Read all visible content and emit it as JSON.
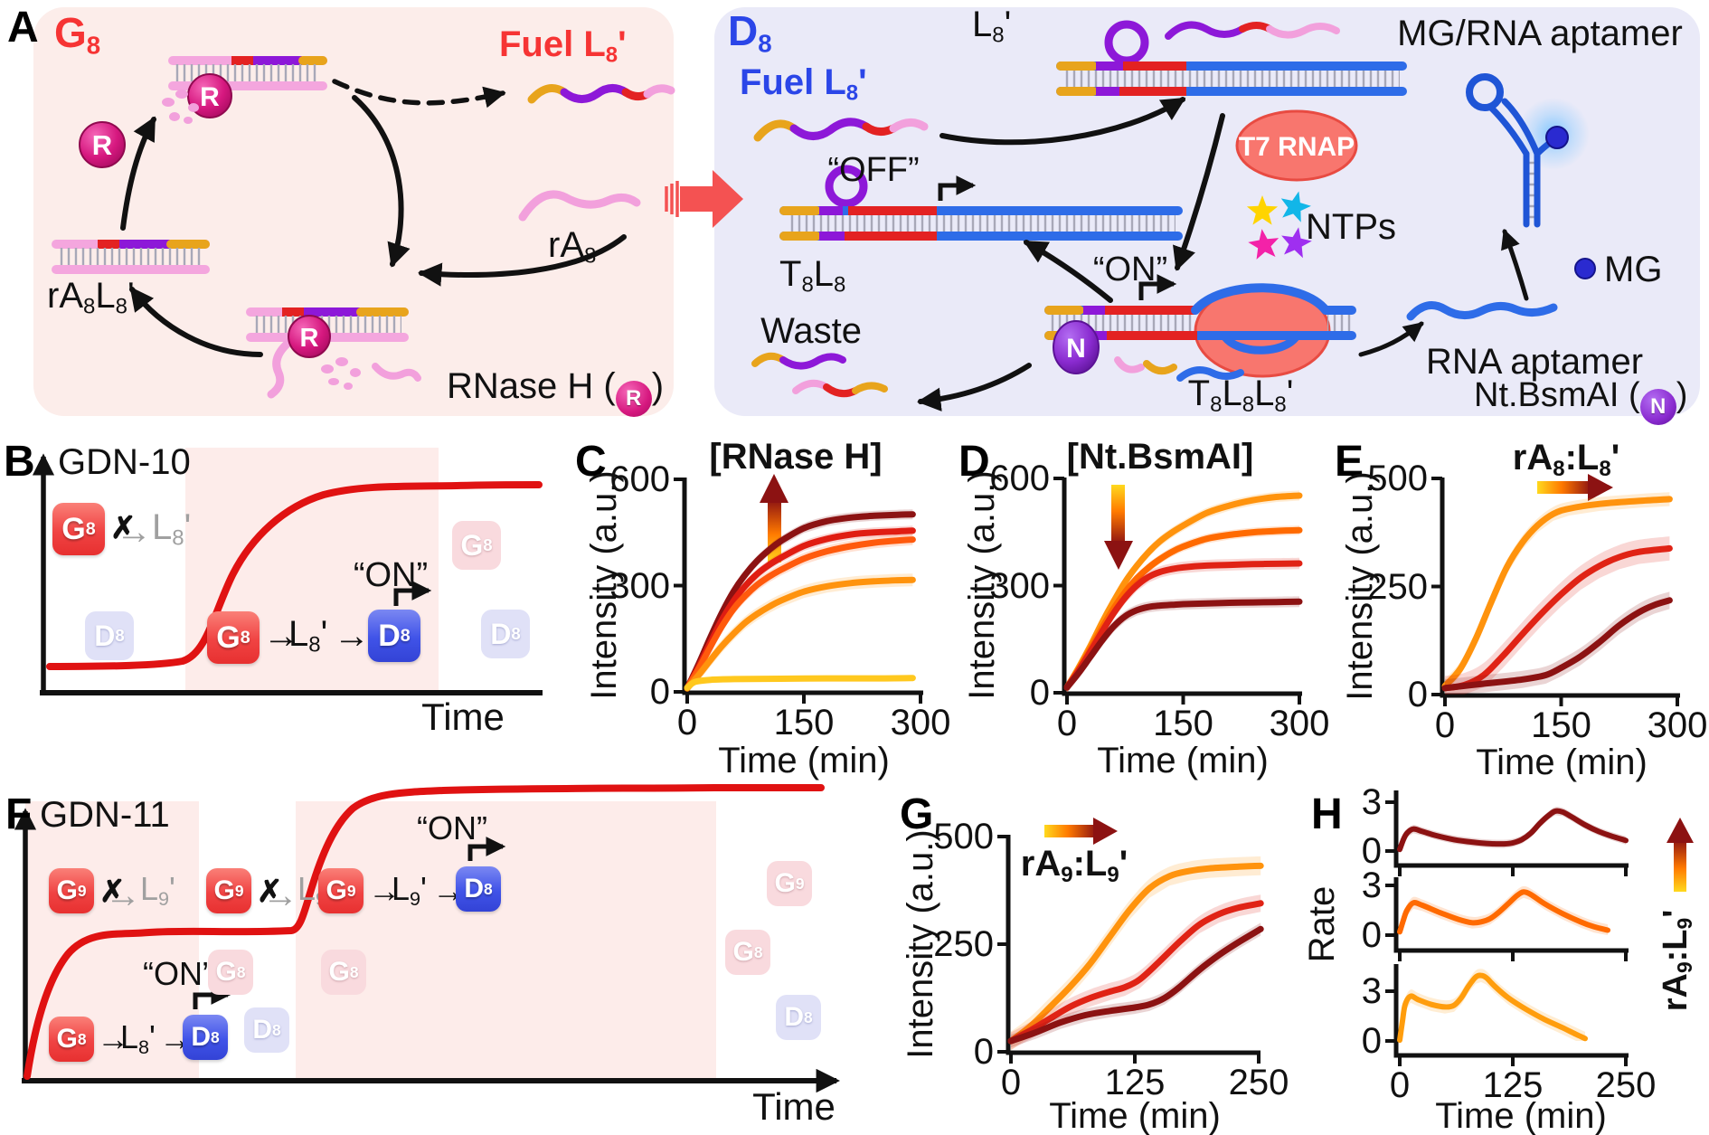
{
  "panel_letters": {
    "a": "A",
    "b": "B",
    "c": "C",
    "d": "D",
    "e": "E",
    "f": "F",
    "g": "G",
    "h": "H"
  },
  "glyphs": {
    "arrow": "→",
    "cross": "✗"
  },
  "panel_a": {
    "left": {
      "title_main": "G",
      "title_sub": "8",
      "fuel_pre": "Fuel ",
      "fuel_main": "L",
      "fuel_sub": "8",
      "fuel_prime": "'",
      "ra8_main": "rA",
      "ra8_sub": "8",
      "ra8l8_m1": "rA",
      "ra8l8_s1": "8",
      "ra8l8_m2": "L",
      "ra8l8_s2": "8",
      "ra8l8_prime": "'",
      "rnase_pre": "RNase H (",
      "rnase_post": ")",
      "rnase_symbol": "R"
    },
    "right": {
      "title_main": "D",
      "title_sub": "8",
      "fuel_pre": "Fuel ",
      "fuel_main": "L",
      "fuel_sub": "8",
      "fuel_prime": "'",
      "l8_main": "L",
      "l8_sub": "8",
      "l8_prime": "'",
      "mg_rna_aptamer": "MG/RNA aptamer",
      "t7_rnap": "T7 RNAP",
      "ntps": "NTPs",
      "off": "“OFF”",
      "on": "“ON”",
      "t8l8_m1": "T",
      "t8l8_s1": "8",
      "t8l8_m2": "L",
      "t8l8_s2": "8",
      "waste": "Waste",
      "t8l8l8_m1": "T",
      "t8l8l8_s1": "8",
      "t8l8l8_m2": "L",
      "t8l8l8_s2": "8",
      "t8l8l8_m3": "L",
      "t8l8l8_s3": "8",
      "t8l8l8_prime": "'",
      "rna_aptamer": "RNA aptamer",
      "mg": "MG",
      "nt_pre": "Nt.BsmAI (",
      "nt_post": ")",
      "nt_symbol": "N"
    }
  },
  "panel_b": {
    "title": "GDN-10",
    "time": "Time",
    "on": "“ON”",
    "g8": {
      "m": "G",
      "s": "8"
    },
    "d8": {
      "m": "D",
      "s": "8"
    },
    "l8": {
      "m": "L",
      "s": "8",
      "p": "'"
    }
  },
  "panel_f": {
    "title": "GDN-11",
    "time": "Time",
    "on": "“ON”",
    "g8": {
      "m": "G",
      "s": "8"
    },
    "g9": {
      "m": "G",
      "s": "9"
    },
    "d8": {
      "m": "D",
      "s": "8"
    },
    "l8": {
      "m": "L",
      "s": "8",
      "p": "'"
    },
    "l9": {
      "m": "L",
      "s": "9",
      "p": "'"
    }
  },
  "chart_data": [
    {
      "panel": "C",
      "type": "line",
      "title": "[RNase H]",
      "xlabel": "Time (min)",
      "ylabel": "Intensity (a.u.)",
      "xlim": [
        0,
        300
      ],
      "ylim": [
        0,
        600
      ],
      "xticks": [
        0,
        150,
        300
      ],
      "yticks": [
        0,
        300,
        600
      ],
      "grid": false,
      "legend": null,
      "gradient_arrow": "up",
      "series": [
        {
          "name": "RNase-H-highest",
          "color": "#8c1212",
          "band": 14,
          "x": [
            0,
            15,
            30,
            45,
            60,
            75,
            90,
            105,
            120,
            150,
            180,
            210,
            240,
            270,
            290
          ],
          "y": [
            10,
            80,
            155,
            225,
            285,
            332,
            370,
            400,
            425,
            462,
            482,
            492,
            497,
            500,
            501
          ]
        },
        {
          "name": "RNase-H-high",
          "color": "#e01d12",
          "band": 14,
          "x": [
            0,
            15,
            30,
            45,
            60,
            75,
            90,
            105,
            120,
            150,
            180,
            210,
            240,
            270,
            290
          ],
          "y": [
            10,
            72,
            140,
            205,
            258,
            300,
            333,
            358,
            378,
            412,
            432,
            444,
            450,
            453,
            455
          ]
        },
        {
          "name": "RNase-H-medium",
          "color": "#ff5a0d",
          "band": 16,
          "x": [
            0,
            15,
            30,
            45,
            60,
            75,
            90,
            105,
            120,
            150,
            180,
            210,
            240,
            270,
            290
          ],
          "y": [
            10,
            66,
            128,
            186,
            235,
            272,
            302,
            325,
            344,
            376,
            397,
            411,
            421,
            427,
            430
          ]
        },
        {
          "name": "RNase-H-low",
          "color": "#ff930d",
          "band": 18,
          "x": [
            0,
            15,
            30,
            45,
            60,
            75,
            90,
            105,
            120,
            150,
            180,
            210,
            240,
            270,
            290
          ],
          "y": [
            10,
            48,
            90,
            130,
            165,
            196,
            220,
            240,
            257,
            283,
            298,
            307,
            312,
            315,
            316
          ]
        },
        {
          "name": "RNase-H-none",
          "color": "#ffc81e",
          "band": 6,
          "x": [
            0,
            10,
            30,
            60,
            120,
            180,
            240,
            290
          ],
          "y": [
            12,
            28,
            34,
            36,
            37,
            38,
            38,
            39
          ]
        }
      ]
    },
    {
      "panel": "D",
      "type": "line",
      "title": "[Nt.BsmAI]",
      "xlabel": "Time (min)",
      "ylabel": "Intensity (a.u.)",
      "xlim": [
        0,
        300
      ],
      "ylim": [
        0,
        600
      ],
      "xticks": [
        0,
        150,
        300
      ],
      "yticks": [
        0,
        300,
        600
      ],
      "grid": false,
      "legend": null,
      "gradient_arrow": "down",
      "series": [
        {
          "name": "NtBsmAI-lowest",
          "color": "#ff930d",
          "band": 14,
          "x": [
            0,
            15,
            30,
            45,
            60,
            75,
            90,
            105,
            120,
            135,
            150,
            180,
            210,
            240,
            270,
            300
          ],
          "y": [
            15,
            70,
            130,
            195,
            255,
            310,
            355,
            393,
            424,
            448,
            468,
            503,
            524,
            539,
            548,
            552
          ]
        },
        {
          "name": "NtBsmAI-low",
          "color": "#ff6a00",
          "band": 13,
          "x": [
            0,
            15,
            30,
            45,
            60,
            75,
            90,
            105,
            120,
            135,
            150,
            180,
            210,
            240,
            270,
            300
          ],
          "y": [
            15,
            65,
            122,
            180,
            235,
            282,
            320,
            350,
            374,
            394,
            409,
            431,
            442,
            449,
            453,
            455
          ]
        },
        {
          "name": "NtBsmAI-high",
          "color": "#e02315",
          "band": 16,
          "x": [
            0,
            15,
            30,
            45,
            60,
            75,
            90,
            105,
            120,
            135,
            150,
            180,
            210,
            240,
            270,
            300
          ],
          "y": [
            15,
            62,
            115,
            170,
            222,
            266,
            300,
            324,
            338,
            346,
            351,
            356,
            358,
            360,
            361,
            362
          ]
        },
        {
          "name": "NtBsmAI-highest",
          "color": "#8c1212",
          "band": 15,
          "x": [
            0,
            15,
            30,
            45,
            60,
            75,
            90,
            105,
            120,
            135,
            150,
            180,
            210,
            240,
            270,
            300
          ],
          "y": [
            15,
            55,
            100,
            145,
            185,
            214,
            231,
            240,
            244,
            246,
            248,
            250,
            252,
            253,
            254,
            255
          ]
        }
      ]
    },
    {
      "panel": "E",
      "type": "line",
      "title_parts": {
        "m1": "rA",
        "s1": "8",
        "sep": ":",
        "m2": "L",
        "s2": "8",
        "p": "'"
      },
      "xlabel": "Time (min)",
      "ylabel": "Intensity (a.u.)",
      "xlim": [
        0,
        300
      ],
      "ylim": [
        0,
        500
      ],
      "xticks": [
        0,
        150,
        300
      ],
      "yticks": [
        0,
        250,
        500
      ],
      "grid": false,
      "legend": null,
      "gradient_arrow": "right",
      "series": [
        {
          "name": "ratio-high",
          "color": "#ff930d",
          "band": 16,
          "x": [
            0,
            20,
            40,
            60,
            80,
            100,
            120,
            140,
            160,
            200,
            250,
            290
          ],
          "y": [
            20,
            60,
            130,
            215,
            295,
            352,
            392,
            418,
            430,
            441,
            448,
            452
          ]
        },
        {
          "name": "ratio-mid",
          "color": "#e02315",
          "band": 28,
          "x": [
            0,
            25,
            50,
            75,
            100,
            125,
            150,
            175,
            200,
            225,
            250,
            290
          ],
          "y": [
            15,
            22,
            45,
            90,
            140,
            188,
            232,
            270,
            298,
            318,
            330,
            338
          ]
        },
        {
          "name": "ratio-low",
          "color": "#8c1212",
          "band": 20,
          "x": [
            0,
            50,
            100,
            130,
            150,
            175,
            200,
            225,
            250,
            270,
            290
          ],
          "y": [
            15,
            25,
            35,
            45,
            62,
            88,
            122,
            160,
            190,
            207,
            218
          ]
        }
      ]
    },
    {
      "panel": "G",
      "type": "line",
      "title_parts": {
        "m1": "rA",
        "s1": "9",
        "sep": ":",
        "m2": "L",
        "s2": "9",
        "p": "'"
      },
      "xlabel": "Time (min)",
      "ylabel": "Intensity (a.u.)",
      "xlim": [
        0,
        250
      ],
      "ylim": [
        0,
        500
      ],
      "xticks": [
        0,
        125,
        250
      ],
      "yticks": [
        0,
        250,
        500
      ],
      "grid": false,
      "legend": null,
      "gradient_arrow": "right",
      "series": [
        {
          "name": "ratio-high",
          "color": "#ff930d",
          "band": 22,
          "x": [
            0,
            20,
            40,
            60,
            80,
            100,
            120,
            140,
            160,
            180,
            200,
            230,
            252
          ],
          "y": [
            25,
            60,
            105,
            152,
            205,
            268,
            330,
            380,
            408,
            420,
            426,
            430,
            432
          ]
        },
        {
          "name": "ratio-mid",
          "color": "#e02315",
          "band": 20,
          "x": [
            0,
            20,
            40,
            60,
            80,
            100,
            115,
            130,
            150,
            170,
            190,
            210,
            230,
            252
          ],
          "y": [
            25,
            50,
            78,
            105,
            125,
            140,
            150,
            168,
            210,
            255,
            295,
            320,
            335,
            345
          ]
        },
        {
          "name": "ratio-low",
          "color": "#8c1212",
          "band": 15,
          "x": [
            0,
            25,
            50,
            75,
            100,
            125,
            140,
            155,
            170,
            190,
            210,
            230,
            252
          ],
          "y": [
            25,
            45,
            68,
            85,
            95,
            103,
            110,
            125,
            150,
            190,
            225,
            255,
            285
          ]
        }
      ]
    },
    {
      "panel": "H",
      "type": "line",
      "ylabel": "Rate",
      "xlabel": "Time (min)",
      "xlim": [
        0,
        250
      ],
      "xticks": [
        0,
        125,
        250
      ],
      "grid": false,
      "legend": null,
      "gradient_arrow": "up",
      "side_label_parts": {
        "m1": "rA",
        "s1": "9",
        "sep": ":",
        "m2": "L",
        "s2": "9",
        "p": "'"
      },
      "subplots": [
        {
          "ylim": [
            0,
            3
          ],
          "yticks": [
            0,
            3
          ],
          "series": [
            {
              "name": "rate-ratio-low",
              "color": "#8c1212",
              "band": 0.25,
              "x": [
                0,
                4,
                8,
                15,
                25,
                40,
                60,
                80,
                100,
                115,
                125,
                135,
                145,
                155,
                165,
                172,
                180,
                190,
                205,
                220,
                235,
                250
              ],
              "y": [
                0.1,
                0.7,
                1.1,
                1.35,
                1.2,
                0.95,
                0.7,
                0.55,
                0.45,
                0.44,
                0.5,
                0.7,
                1.1,
                1.7,
                2.2,
                2.45,
                2.4,
                2.1,
                1.6,
                1.2,
                0.9,
                0.65
              ]
            }
          ]
        },
        {
          "ylim": [
            0,
            3
          ],
          "yticks": [
            0,
            3
          ],
          "series": [
            {
              "name": "rate-ratio-mid",
              "color": "#ff6a00",
              "band": 0.35,
              "x": [
                0,
                4,
                8,
                15,
                25,
                45,
                65,
                80,
                90,
                100,
                110,
                120,
                130,
                137,
                145,
                160,
                180,
                200,
                215,
                230
              ],
              "y": [
                0.2,
                0.9,
                1.5,
                1.95,
                1.8,
                1.35,
                0.95,
                0.75,
                0.8,
                1.0,
                1.4,
                1.9,
                2.4,
                2.6,
                2.45,
                1.9,
                1.3,
                0.8,
                0.5,
                0.3
              ]
            }
          ]
        },
        {
          "ylim": [
            0,
            3
          ],
          "yticks": [
            0,
            3
          ],
          "series": [
            {
              "name": "rate-ratio-high",
              "color": "#ff9d0d",
              "band": 0.4,
              "x": [
                0,
                3,
                6,
                12,
                20,
                35,
                50,
                60,
                68,
                76,
                84,
                90,
                96,
                105,
                120,
                140,
                160,
                180,
                195,
                205
              ],
              "y": [
                0.05,
                1.2,
                2.2,
                2.7,
                2.5,
                2.2,
                2.05,
                2.15,
                2.6,
                3.3,
                3.85,
                3.95,
                3.8,
                3.3,
                2.6,
                1.9,
                1.3,
                0.8,
                0.4,
                0.15
              ]
            }
          ]
        }
      ]
    }
  ]
}
